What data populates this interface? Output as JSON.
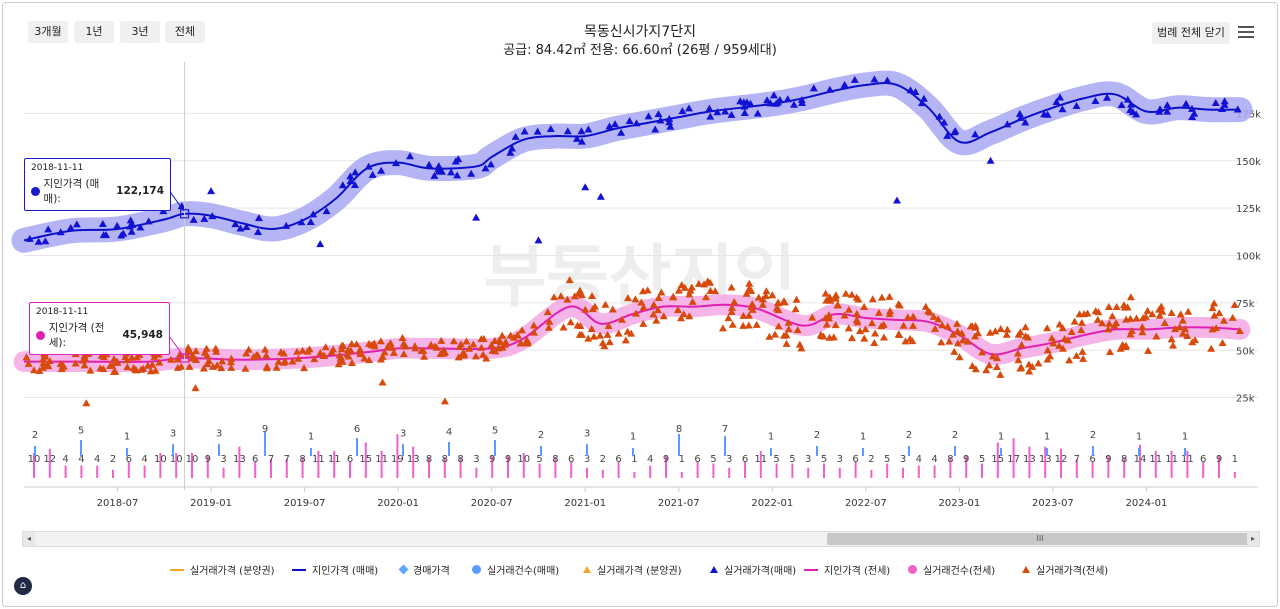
{
  "range_buttons": [
    "3개월",
    "1년",
    "3년",
    "전체"
  ],
  "title_line1": "목동신시가지7단지",
  "title_line2": "공급: 84.42㎡ 전용: 66.60㎡ (26평 / 959세대)",
  "legend_toggle": "범례 전체 닫기",
  "menu_icon": "hamburger-menu-icon",
  "watermark": "부동산지인",
  "tooltip_sale": {
    "date": "2018-11-11",
    "label": "지인가격 (매매):",
    "value": "122,174"
  },
  "tooltip_rent": {
    "date": "2018-11-11",
    "label": "지인가격 (전세):",
    "value": "45,948"
  },
  "scroll_grip": "III",
  "scroll_left": "◂",
  "scroll_right": "▸",
  "colors": {
    "sale": "#0c10c8",
    "sale_band": "#a8a8f4",
    "rent": "#e020b0",
    "rent_band": "#f4a8e4",
    "deal": "#d84a0c",
    "cursor": "#cccccc"
  },
  "legend_items": [
    {
      "label": "실거래가격 (분양권)",
      "symbol": "line",
      "color": "#f5a623"
    },
    {
      "label": "지인가격 (매매)",
      "symbol": "line",
      "color": "#0c10c8"
    },
    {
      "label": "경매가격",
      "symbol": "diamond",
      "color": "#5aa8ff"
    },
    {
      "label": "실거래건수(매매)",
      "symbol": "circle",
      "color": "#5a9cff"
    },
    {
      "label": "실거래가격 (분양권)",
      "symbol": "triangle",
      "color": "#f5a623"
    },
    {
      "label": "실거래가격(매매)",
      "symbol": "triangle",
      "color": "#1010d0"
    },
    {
      "label": "지인가격 (전세)",
      "symbol": "line",
      "color": "#e020b0"
    },
    {
      "label": "실거래건수(전세)",
      "symbol": "circle",
      "color": "#f060c8"
    },
    {
      "label": "실거래가격(전세)",
      "symbol": "triangle",
      "color": "#d84a0c"
    }
  ],
  "chart_data": {
    "type": "line",
    "title": "목동신시가지7단지",
    "subtitle": "공급: 84.42㎡ 전용: 66.60㎡ (26평 / 959세대)",
    "x_ticks": [
      "2018-07",
      "2019-01",
      "2019-07",
      "2020-01",
      "2020-07",
      "2021-01",
      "2021-07",
      "2022-01",
      "2022-07",
      "2023-01",
      "2023-07",
      "2024-01"
    ],
    "x_range": [
      "2018-01",
      "2024-06"
    ],
    "y_ticks": [
      "25k",
      "50k",
      "75k",
      "100k",
      "125k",
      "150k",
      "175k"
    ],
    "y_tick_values": [
      25,
      50,
      75,
      100,
      125,
      150,
      175
    ],
    "ylim": [
      0,
      195
    ],
    "unit": "백만원",
    "cursor_date": "2018-11-11",
    "series": [
      {
        "name": "지인가격 (매매)",
        "t": [
          0,
          3,
          6,
          9,
          10.3,
          12,
          14,
          16,
          18,
          20,
          22,
          24,
          26,
          29,
          30,
          32,
          34,
          36,
          38,
          40,
          42,
          44,
          48,
          50,
          52,
          54,
          56,
          58,
          60,
          62,
          64,
          66,
          68,
          70,
          72,
          74,
          76,
          78
        ],
        "values": [
          108,
          113,
          114,
          119,
          122,
          121,
          117,
          114,
          119,
          130,
          146,
          149,
          146,
          147,
          152,
          161,
          163,
          163,
          167,
          170,
          173,
          176,
          180,
          183,
          187,
          190,
          190,
          178,
          160,
          165,
          172,
          178,
          183,
          185,
          176,
          178,
          177,
          177
        ],
        "band": 6
      },
      {
        "name": "지인가격 (전세)",
        "t": [
          0,
          4,
          8,
          10.3,
          14,
          18,
          22,
          24,
          26,
          30,
          32,
          35,
          37,
          39,
          41,
          43,
          45,
          47,
          50,
          52,
          54,
          56,
          58,
          60,
          62,
          64,
          66,
          68,
          70,
          72,
          74,
          76,
          78
        ],
        "values": [
          44,
          44,
          44,
          45.9,
          45,
          46,
          49,
          51,
          51,
          51,
          56,
          73,
          64,
          69,
          73,
          73,
          74,
          72,
          63,
          69,
          67,
          66,
          65,
          58,
          48,
          51,
          54,
          58,
          61,
          61,
          62,
          62,
          61
        ],
        "band": 5
      }
    ],
    "volume_labels": {
      "pink": [
        10,
        12,
        4,
        4,
        4,
        2,
        6,
        4,
        10,
        10,
        10,
        9,
        3,
        13,
        6,
        7,
        7,
        8,
        11,
        11,
        6,
        15,
        11,
        19,
        13,
        8,
        8,
        8,
        3,
        9,
        9,
        10,
        5,
        8,
        6,
        3,
        2,
        6,
        1,
        4,
        9,
        1,
        6,
        5,
        3,
        6,
        11,
        5,
        5,
        3,
        5,
        3,
        6,
        2,
        5,
        3,
        4,
        4,
        8,
        9,
        5,
        15,
        17,
        13,
        13,
        12,
        7,
        6,
        9,
        8,
        14,
        11,
        11,
        11,
        6,
        9,
        1
      ],
      "blue": [
        2,
        5,
        1,
        3,
        3,
        9,
        1,
        6,
        3,
        4,
        5,
        2,
        3,
        1,
        8,
        7,
        1,
        2,
        1,
        2,
        2,
        1,
        1,
        2,
        1,
        1
      ]
    }
  }
}
